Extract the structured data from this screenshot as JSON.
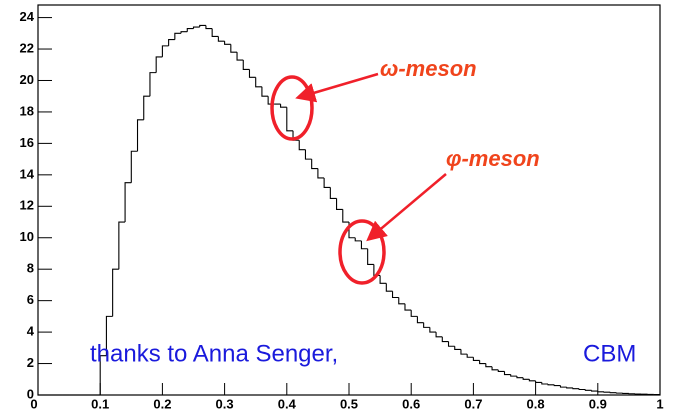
{
  "chart_data": {
    "type": "histogram",
    "bins": [
      0,
      0.01,
      0.02,
      0.03,
      0.04,
      0.05,
      0.06,
      0.07,
      0.08,
      0.09,
      0.1,
      0.11,
      0.12,
      0.13,
      0.14,
      0.15,
      0.16,
      0.17,
      0.18,
      0.19,
      0.2,
      0.21,
      0.22,
      0.23,
      0.24,
      0.25,
      0.26,
      0.27,
      0.28,
      0.29,
      0.3,
      0.31,
      0.32,
      0.33,
      0.34,
      0.35,
      0.36,
      0.37,
      0.38,
      0.39,
      0.4,
      0.41,
      0.42,
      0.43,
      0.44,
      0.45,
      0.46,
      0.47,
      0.48,
      0.49,
      0.5,
      0.51,
      0.52,
      0.53,
      0.54,
      0.55,
      0.56,
      0.57,
      0.58,
      0.59,
      0.6,
      0.61,
      0.62,
      0.63,
      0.64,
      0.65,
      0.66,
      0.67,
      0.68,
      0.69,
      0.7,
      0.71,
      0.72,
      0.73,
      0.74,
      0.75,
      0.76,
      0.77,
      0.78,
      0.79,
      0.8,
      0.81,
      0.82,
      0.83,
      0.84,
      0.85,
      0.86,
      0.87,
      0.88,
      0.89,
      0.9,
      0.91,
      0.92,
      0.93,
      0.94,
      0.95,
      0.96,
      0.97,
      0.98,
      0.99,
      1
    ],
    "values": [
      0,
      0,
      0,
      0,
      0,
      0,
      0,
      0,
      0,
      0,
      2.5,
      5,
      8,
      11,
      13.5,
      15.5,
      17.5,
      19,
      20.5,
      21.5,
      22.2,
      22.6,
      23,
      23.1,
      23.3,
      23.4,
      23.5,
      23.3,
      22.8,
      22.5,
      22.3,
      21.8,
      21.3,
      20.7,
      20.2,
      19.6,
      19,
      18.5,
      18.5,
      18.3,
      16.8,
      16.2,
      15.6,
      15,
      14.4,
      13.8,
      13.2,
      12.5,
      11.8,
      11,
      10,
      9.8,
      9.3,
      8.3,
      7.6,
      7.1,
      6.6,
      6.2,
      5.8,
      5.4,
      5,
      4.6,
      4.3,
      4,
      3.7,
      3.4,
      3.1,
      2.9,
      2.6,
      2.4,
      2.2,
      2,
      1.8,
      1.6,
      1.5,
      1.3,
      1.2,
      1.1,
      1,
      0.9,
      0.8,
      0.7,
      0.65,
      0.6,
      0.5,
      0.45,
      0.4,
      0.35,
      0.3,
      0.25,
      0.2,
      0.18,
      0.15,
      0.12,
      0.1,
      0.08,
      0.06,
      0.05,
      0.04,
      0.03
    ],
    "color": "#000000",
    "xlim": [
      0,
      1
    ],
    "xticks": [
      0,
      0.1,
      0.2,
      0.3,
      0.4,
      0.5,
      0.6,
      0.7,
      0.8,
      0.9,
      1
    ],
    "ylim": [
      0,
      24.8
    ],
    "yticks": [
      0,
      2,
      4,
      6,
      8,
      10,
      12,
      14,
      16,
      18,
      20,
      22,
      24
    ],
    "annotations": [
      "ω-meson",
      "φ-meson",
      "thanks to Anna Senger,",
      "CBM"
    ]
  }
}
